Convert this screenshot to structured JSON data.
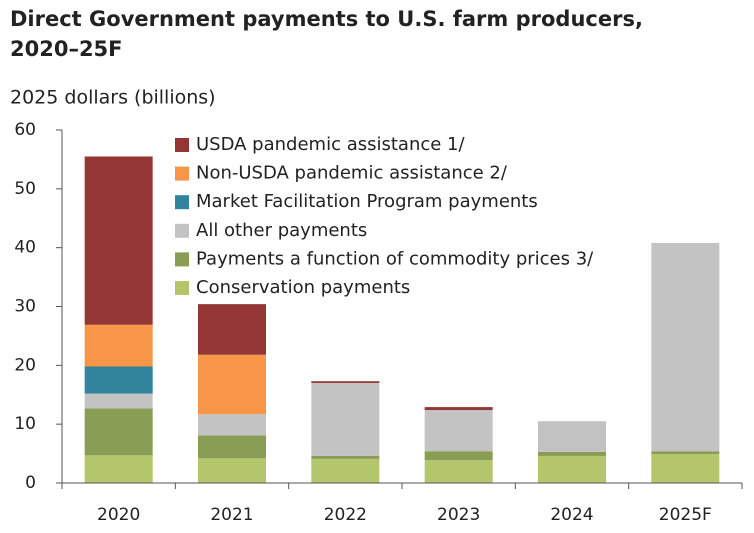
{
  "chart_data": {
    "type": "stacked_bar",
    "title": "Direct Government payments to U.S. farm producers, 2020–25F",
    "y_label": "2025 dollars (billions)",
    "categories": [
      "2020",
      "2021",
      "2022",
      "2023",
      "2024",
      "2025F"
    ],
    "series": [
      {
        "name": "Conservation payments",
        "color": "#b3c66c",
        "values": [
          4.7,
          4.2,
          4.1,
          3.9,
          4.6,
          4.9
        ]
      },
      {
        "name": "Payments a function of commodity prices 3/",
        "color": "#8a9d55",
        "values": [
          8.0,
          3.9,
          0.5,
          1.5,
          0.7,
          0.5
        ]
      },
      {
        "name": "All other payments",
        "color": "#c3c3c3",
        "values": [
          2.5,
          3.6,
          12.4,
          7.0,
          5.2,
          35.4
        ]
      },
      {
        "name": "Market Facilitation Program payments",
        "color": "#31849b",
        "values": [
          4.6,
          0,
          0,
          0,
          0,
          0
        ]
      },
      {
        "name": "Non-USDA pandemic assistance 2/",
        "color": "#f79646",
        "values": [
          7.1,
          10.1,
          0,
          0,
          0,
          0
        ]
      },
      {
        "name": "USDA pandemic assistance 1/",
        "color": "#943634",
        "values": [
          28.6,
          8.6,
          0.3,
          0.5,
          0,
          0
        ]
      }
    ],
    "ylim": [
      0,
      60
    ],
    "yticks": [
      0,
      10,
      20,
      30,
      40,
      50,
      60
    ],
    "grid": false
  }
}
